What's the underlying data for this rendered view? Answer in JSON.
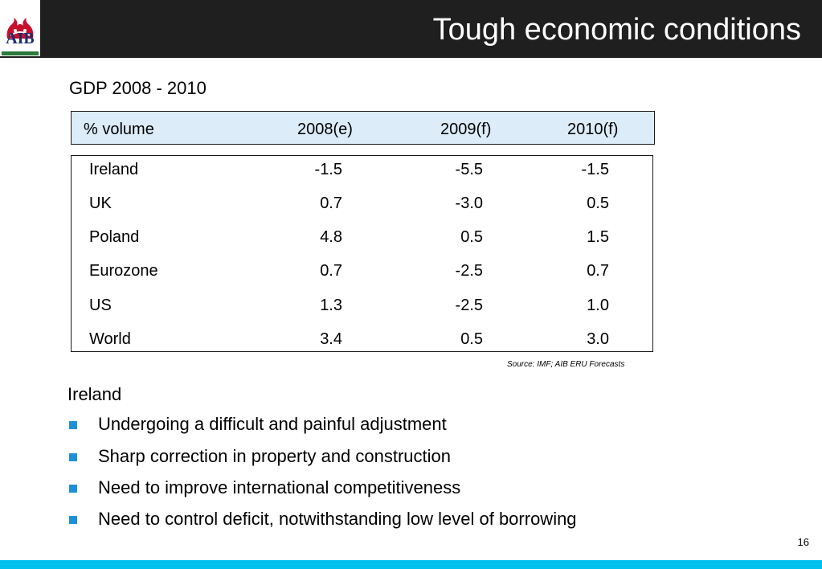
{
  "header": {
    "logo_text": "AIB",
    "title": "Tough economic conditions"
  },
  "subtitle": "GDP 2008 - 2010",
  "table": {
    "columns": [
      "% volume",
      "2008(e)",
      "2009(f)",
      "2010(f)"
    ],
    "rows": [
      [
        "Ireland",
        "-1.5",
        "-5.5",
        "-1.5"
      ],
      [
        "UK",
        "0.7",
        "-3.0",
        "0.5"
      ],
      [
        "Poland",
        "4.8",
        "0.5",
        "1.5"
      ],
      [
        "Eurozone",
        "0.7",
        "-2.5",
        "0.7"
      ],
      [
        "US",
        "1.3",
        "-2.5",
        "1.0"
      ],
      [
        "World",
        "3.4",
        "0.5",
        "3.0"
      ]
    ]
  },
  "source": "Source: IMF; AIB ERU Forecasts",
  "section": {
    "heading": "Ireland",
    "bullets": [
      "Undergoing a difficult and painful adjustment",
      "Sharp correction in property and construction",
      "Need to improve international competitiveness",
      "Need to control deficit, notwithstanding low level of borrowing"
    ]
  },
  "page_number": "16",
  "colors": {
    "header_bg": "#1f1f1f",
    "table_header_bg": "#dcecf9",
    "bullet": "#1e90d6",
    "bottom_bar": "#00c0ee",
    "logo_navy": "#1a2e6e",
    "logo_red": "#c8102e"
  }
}
